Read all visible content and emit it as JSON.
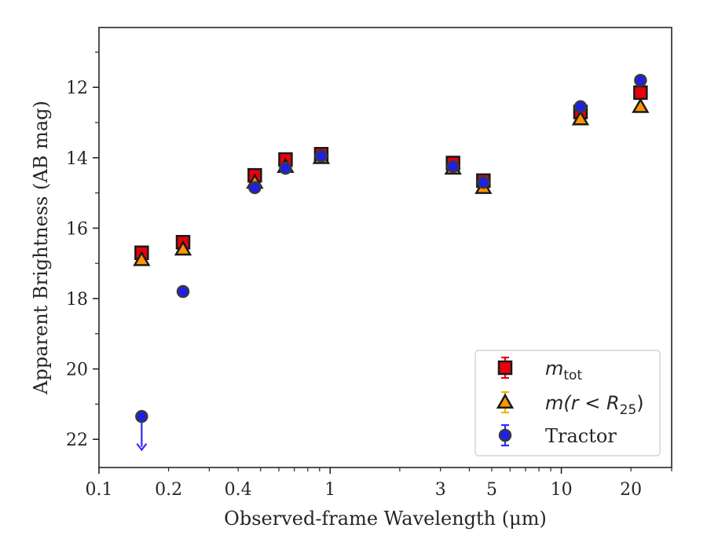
{
  "chart_data": {
    "type": "scatter",
    "xlabel": "Observed-frame Wavelength (μm)",
    "ylabel": "Apparent Brightness (AB mag)",
    "xscale": "log",
    "xlim": [
      0.1,
      30
    ],
    "ylim": [
      22.8,
      10.3
    ],
    "y_inverted": true,
    "x_ticks": [
      0.1,
      0.2,
      0.4,
      1,
      3,
      5,
      10,
      20
    ],
    "x_tick_labels": [
      "0.1",
      "0.2",
      "0.4",
      "1",
      "3",
      "5",
      "10",
      "20"
    ],
    "y_ticks": [
      12,
      14,
      16,
      18,
      20,
      22
    ],
    "y_tick_labels": [
      "12",
      "14",
      "16",
      "18",
      "20",
      "22"
    ],
    "legend_position": "lower right",
    "grid": false,
    "series": [
      {
        "name": "m_tot",
        "marker": "square",
        "color": "#e8000b",
        "error_color": "#e8000b",
        "x": [
          0.153,
          0.231,
          0.472,
          0.641,
          0.915,
          3.4,
          4.6,
          12.1,
          22.0
        ],
        "y": [
          16.7,
          16.4,
          14.5,
          14.05,
          13.9,
          14.15,
          14.65,
          12.7,
          12.15
        ]
      },
      {
        "name": "m(r<R25)",
        "marker": "triangle",
        "color": "#ff9500",
        "error_color": "#f0b400",
        "x": [
          0.153,
          0.231,
          0.472,
          0.641,
          0.915,
          3.4,
          4.6,
          12.1,
          22.0
        ],
        "y": [
          16.9,
          16.6,
          14.7,
          14.25,
          14.0,
          14.3,
          14.85,
          12.9,
          12.55
        ]
      },
      {
        "name": "Tractor",
        "marker": "circle",
        "color": "#1f1fe8",
        "error_color": "#2b2bff",
        "x": [
          0.153,
          0.231,
          0.472,
          0.641,
          0.915,
          3.4,
          4.6,
          12.1,
          22.0
        ],
        "y": [
          21.35,
          17.8,
          14.85,
          14.3,
          13.95,
          14.25,
          14.7,
          12.55,
          11.8
        ],
        "upper_limit_index": 0,
        "upper_limit_to": 22.3
      }
    ],
    "legend": [
      {
        "name": "m_tot",
        "base": "m",
        "sub": "tot"
      },
      {
        "name": "m(r<R25)",
        "base": "m(r < R",
        "sub": "25",
        "tail": ")"
      },
      {
        "name": "Tractor",
        "label": "Tractor"
      }
    ]
  }
}
